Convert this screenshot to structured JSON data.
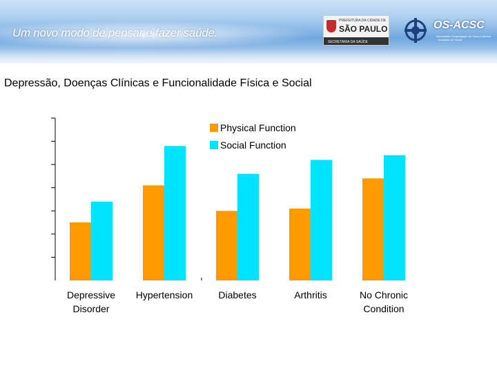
{
  "header": {
    "tagline": "Um novo modo de pensar e fazer saúde.",
    "city_logo": {
      "prefix": "PREFEITURA DA CIDADE DE",
      "name": "SÃO PAULO",
      "sub": "SECRETARIA DA SAÚDE"
    },
    "os_logo": {
      "name": "OS-ACSC",
      "sub": "Associação Congregação de Santa Catarina · Unidades de Saúde"
    }
  },
  "slide_title": "Depressão, Doenças Clínicas e Funcionalidade Física e Social",
  "chart_data": {
    "type": "bar",
    "title": "Depressão, Doenças Clínicas e Funcionalidade Física e Social",
    "xlabel": "",
    "ylabel": "",
    "ylim": [
      0,
      70
    ],
    "y_gridlines": false,
    "legend_position": "top-right",
    "categories": [
      [
        "Depressive",
        "Disorder"
      ],
      [
        "Hypertension"
      ],
      [
        "Diabetes"
      ],
      [
        "Arthritis"
      ],
      [
        "No Chronic",
        "Condition"
      ]
    ],
    "series": [
      {
        "name": "Physical Function",
        "color": "#ff9900",
        "values": [
          25,
          41,
          30,
          31,
          44
        ]
      },
      {
        "name": "Social Function",
        "color": "#00e5ff",
        "values": [
          34,
          58,
          46,
          52,
          54
        ]
      }
    ]
  }
}
